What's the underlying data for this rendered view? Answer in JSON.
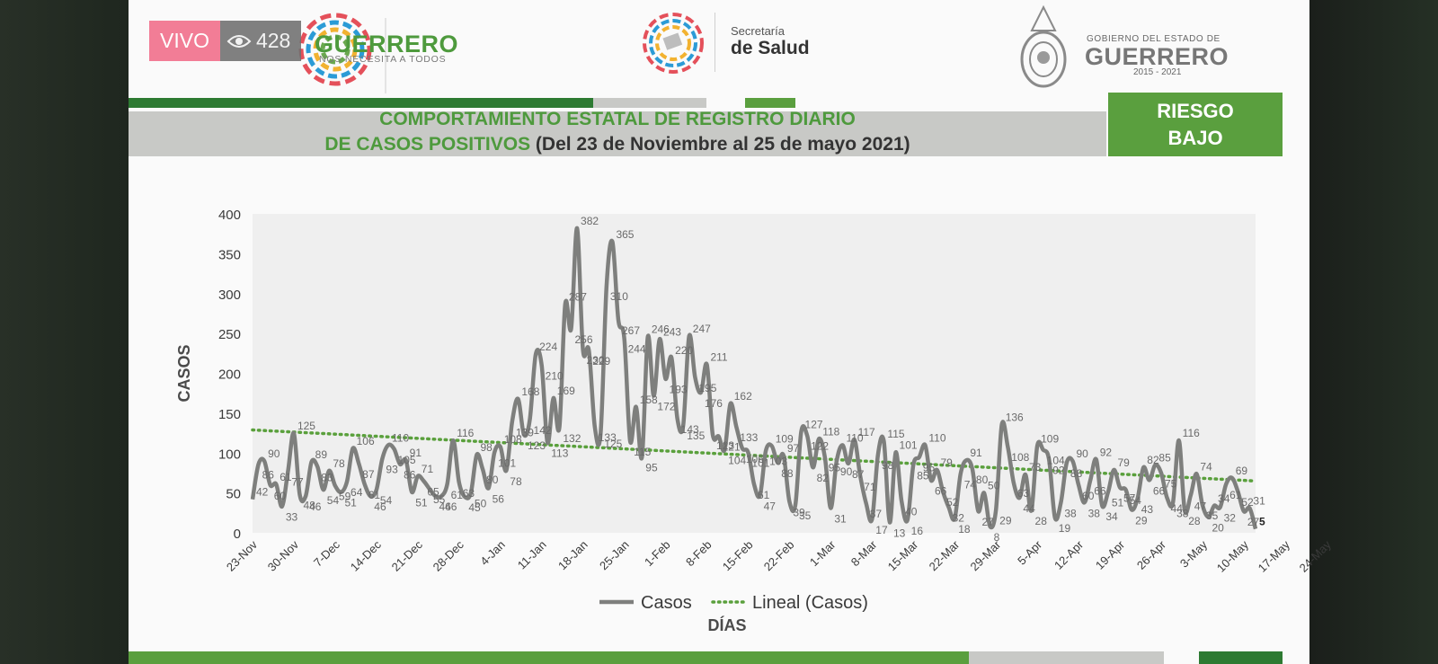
{
  "live": {
    "label": "VIVO",
    "viewers": "428",
    "icon": "eye-icon"
  },
  "header": {
    "guerrero_logo": {
      "name": "GUERRERO",
      "tagline": "NOS NECESITA A TODOS"
    },
    "salud_logo": {
      "line1": "Secretaría",
      "line2": "de Salud"
    },
    "gobierno_logo": {
      "line1": "GOBIERNO DEL ESTADO DE",
      "line2": "GUERRERO",
      "line3": "2015 - 2021"
    }
  },
  "title": {
    "line1": "COMPORTAMIENTO ESTATAL DE REGISTRO DIARIO",
    "line2_green": "DE CASOS POSITIVOS",
    "line2_dark": " (Del 23 de Noviembre al 25 de mayo 2021)"
  },
  "risk": {
    "line1": "RIESGO",
    "line2": "BAJO"
  },
  "colors": {
    "green": "#4e9a3d",
    "risk_green": "#5a9f3e",
    "series_gray": "#7e7f7d",
    "trend_green": "#5aa03c",
    "band_gray": "#c8c9c6"
  },
  "chart_data": {
    "type": "line",
    "ylabel": "CASOS",
    "xlabel": "DÍAS",
    "ylim": [
      0,
      400
    ],
    "yticks": [
      0,
      50,
      100,
      150,
      200,
      250,
      300,
      350,
      400
    ],
    "xticks": [
      "23-Nov",
      "30-Nov",
      "7-Dec",
      "14-Dec",
      "21-Dec",
      "28-Dec",
      "4-Jan",
      "11-Jan",
      "18-Jan",
      "25-Jan",
      "1-Feb",
      "8-Feb",
      "15-Feb",
      "22-Feb",
      "1-Mar",
      "8-Mar",
      "15-Mar",
      "22-Mar",
      "29-Mar",
      "5-Apr",
      "12-Apr",
      "19-Apr",
      "26-Apr",
      "3-May",
      "10-May",
      "17-May",
      "24-May"
    ],
    "legend_position": "bottom",
    "grid": false,
    "series": [
      {
        "name": "Casos",
        "values": [
          42,
          86,
          90,
          60,
          61,
          33,
          77,
          125,
          48,
          46,
          89,
          83,
          54,
          78,
          59,
          51,
          64,
          106,
          87,
          61,
          46,
          54,
          93,
          110,
          105,
          86,
          91,
          51,
          71,
          65,
          55,
          46,
          46,
          61,
          116,
          63,
          45,
          50,
          98,
          80,
          56,
          101,
          108,
          78,
          139,
          168,
          123,
          142,
          224,
          210,
          113,
          169,
          132,
          287,
          256,
          382,
          230,
          229,
          133,
          125,
          310,
          365,
          267,
          244,
          115,
          158,
          95,
          246,
          172,
          243,
          193,
          220,
          143,
          135,
          247,
          195,
          176,
          211,
          123,
          121,
          104,
          162,
          133,
          106,
          101,
          61,
          47,
          103,
          109,
          88,
          97,
          39,
          35,
          127,
          122,
          82,
          118,
          95,
          31,
          90,
          110,
          87,
          117,
          71,
          37,
          17,
          98,
          115,
          13,
          101,
          40,
          16,
          85,
          95,
          110,
          66,
          79,
          52,
          32,
          18,
          74,
          91,
          80,
          27,
          50,
          8,
          29,
          136,
          108,
          63,
          44,
          73,
          28,
          109,
          104,
          92,
          19,
          38,
          88,
          90,
          60,
          38,
          66,
          92,
          34,
          51,
          79,
          57,
          54,
          29,
          43,
          82,
          66,
          85,
          75,
          44,
          38,
          116,
          28,
          47,
          74,
          35,
          20,
          34,
          32,
          61,
          69,
          52,
          27,
          31,
          5
        ]
      },
      {
        "name": "Lineal (Casos)",
        "values": [
          129,
          65
        ]
      }
    ]
  }
}
